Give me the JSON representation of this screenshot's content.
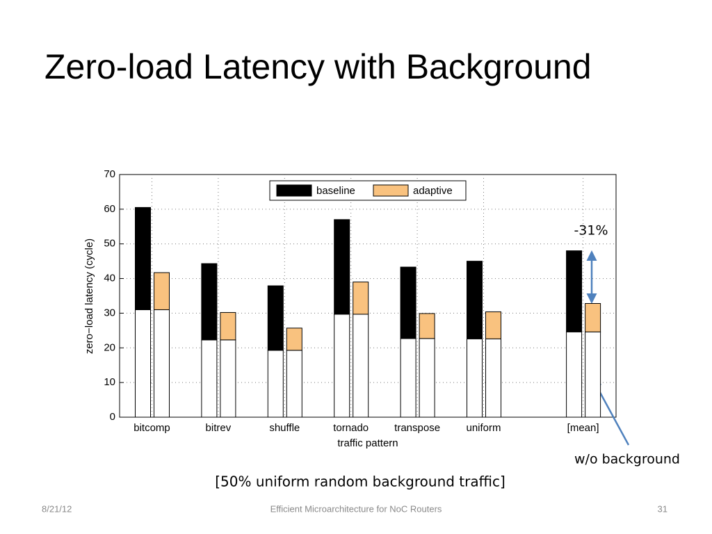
{
  "title": "Zero-load Latency with Background",
  "chart_data": {
    "type": "bar",
    "categories": [
      "bitcomp",
      "bitrev",
      "shuffle",
      "tornado",
      "transpose",
      "uniform",
      "[mean]"
    ],
    "series": [
      {
        "name": "baseline",
        "color": "#000000",
        "base": [
          31,
          22.3,
          19.3,
          29.7,
          22.7,
          22.6,
          24.6
        ],
        "values": [
          29.5,
          22.0,
          18.6,
          27.3,
          20.6,
          22.4,
          23.4
        ]
      },
      {
        "name": "adaptive",
        "color": "#f9c27f",
        "base": [
          31,
          22.3,
          19.3,
          29.7,
          22.7,
          22.6,
          24.6
        ],
        "values": [
          10.7,
          7.9,
          6.4,
          9.3,
          7.2,
          7.8,
          8.2
        ]
      }
    ],
    "base_color": "#ffffff",
    "xlabel": "traffic pattern",
    "ylabel": "zero−load latency (cycle)",
    "ylim": [
      0,
      70
    ],
    "yticks": [
      0,
      10,
      20,
      30,
      40,
      50,
      60,
      70
    ],
    "grid": true,
    "legend": "top",
    "annotations": [
      "-31%",
      "w/o background"
    ]
  },
  "caption": "[50% uniform random background traffic]",
  "footer": {
    "date": "8/21/12",
    "center": "Efficient Microarchitecture for NoC Routers",
    "page": "31"
  }
}
